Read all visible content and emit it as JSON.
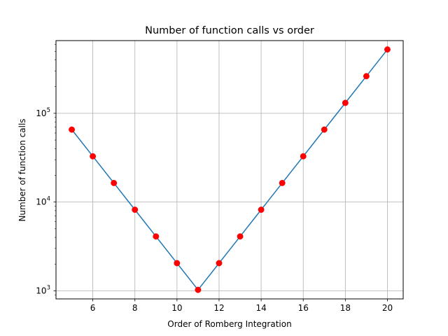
{
  "chart_data": {
    "type": "line",
    "title": "Number of function calls vs order",
    "xlabel": "Order of Romberg Integration",
    "ylabel": "Number of function calls",
    "x": [
      5,
      6,
      7,
      8,
      9,
      10,
      11,
      12,
      13,
      14,
      15,
      16,
      17,
      18,
      19,
      20
    ],
    "series": [
      {
        "values": [
          65536,
          32768,
          16384,
          8192,
          4096,
          2048,
          1024,
          2048,
          4096,
          8192,
          16384,
          32768,
          65536,
          131072,
          262144,
          524288
        ]
      }
    ],
    "y_scale": "log",
    "xlim": [
      4.25,
      20.75
    ],
    "ylim": [
      810,
      660000
    ],
    "x_ticks": [
      6,
      8,
      10,
      12,
      14,
      16,
      18,
      20
    ],
    "y_ticks": [
      {
        "value": 1000,
        "base": "10",
        "exp": "3"
      },
      {
        "value": 10000,
        "base": "10",
        "exp": "4"
      },
      {
        "value": 100000,
        "base": "10",
        "exp": "5"
      }
    ],
    "grid": true,
    "line_color": "#1f77b4",
    "marker_color": "#ff0000"
  }
}
